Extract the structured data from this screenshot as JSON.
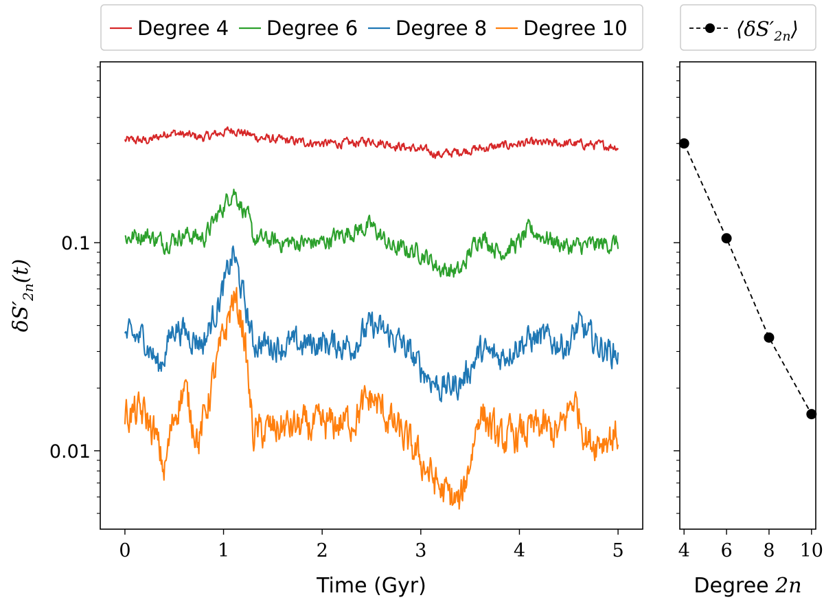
{
  "chart_data": [
    {
      "type": "line",
      "xlabel": "Time (Gyr)",
      "ylabel": "δS′2n(t)",
      "ylabel_parts": {
        "base": "δS′",
        "sub": "2n",
        "arg": "(t)"
      },
      "yscale": "log",
      "xlim": [
        -0.25,
        5.25
      ],
      "ylim": [
        0.0042,
        0.74
      ],
      "xticks": [
        0,
        1,
        2,
        3,
        4,
        5
      ],
      "xtick_labels": [
        "0",
        "1",
        "2",
        "3",
        "4",
        "5"
      ],
      "yticks": [
        0.01,
        0.1
      ],
      "ytick_labels": [
        "0.01",
        "0.1"
      ],
      "legend_position": "top, above plot",
      "grid": false,
      "series": [
        {
          "name": "Degree 4",
          "color": "#d62728",
          "x": [
            0,
            0.25,
            0.45,
            0.6,
            0.8,
            1.1,
            1.35,
            1.6,
            2.0,
            2.3,
            2.5,
            2.8,
            3.0,
            3.2,
            3.5,
            3.8,
            4.0,
            4.5,
            5.0
          ],
          "y": [
            0.31,
            0.31,
            0.34,
            0.33,
            0.32,
            0.35,
            0.32,
            0.31,
            0.3,
            0.3,
            0.31,
            0.29,
            0.28,
            0.265,
            0.28,
            0.29,
            0.3,
            0.3,
            0.29
          ]
        },
        {
          "name": "Degree 6",
          "color": "#2ca02c",
          "x": [
            0,
            0.2,
            0.4,
            0.6,
            0.8,
            1.0,
            1.1,
            1.25,
            1.3,
            1.6,
            2.0,
            2.2,
            2.5,
            2.7,
            3.0,
            3.2,
            3.4,
            3.5,
            3.6,
            3.8,
            4.0,
            4.1,
            4.5,
            5.0
          ],
          "y": [
            0.105,
            0.11,
            0.1,
            0.11,
            0.105,
            0.15,
            0.18,
            0.13,
            0.105,
            0.1,
            0.1,
            0.11,
            0.12,
            0.095,
            0.09,
            0.075,
            0.072,
            0.09,
            0.11,
            0.09,
            0.1,
            0.115,
            0.095,
            0.1
          ]
        },
        {
          "name": "Degree 8",
          "color": "#1f77b4",
          "x": [
            0,
            0.2,
            0.35,
            0.5,
            0.7,
            0.8,
            1.0,
            1.1,
            1.2,
            1.3,
            1.6,
            2.0,
            2.3,
            2.5,
            2.8,
            3.0,
            3.2,
            3.4,
            3.6,
            3.8,
            4.0,
            4.2,
            4.5,
            4.6,
            4.8,
            5.0
          ],
          "y": [
            0.035,
            0.035,
            0.025,
            0.04,
            0.035,
            0.033,
            0.06,
            0.09,
            0.055,
            0.033,
            0.032,
            0.033,
            0.032,
            0.04,
            0.033,
            0.025,
            0.02,
            0.021,
            0.03,
            0.028,
            0.033,
            0.035,
            0.032,
            0.04,
            0.032,
            0.029
          ]
        },
        {
          "name": "Degree 10",
          "color": "#ff7f0e",
          "x": [
            0,
            0.2,
            0.3,
            0.4,
            0.5,
            0.6,
            0.75,
            0.85,
            1.0,
            1.1,
            1.2,
            1.3,
            1.6,
            2.0,
            2.3,
            2.5,
            2.8,
            3.0,
            3.2,
            3.4,
            3.5,
            3.6,
            3.8,
            4.0,
            4.2,
            4.4,
            4.55,
            4.7,
            5.0
          ],
          "y": [
            0.015,
            0.015,
            0.012,
            0.008,
            0.015,
            0.02,
            0.011,
            0.018,
            0.035,
            0.055,
            0.04,
            0.012,
            0.013,
            0.013,
            0.014,
            0.018,
            0.012,
            0.009,
            0.0065,
            0.0055,
            0.009,
            0.016,
            0.011,
            0.012,
            0.013,
            0.012,
            0.018,
            0.011,
            0.012
          ]
        }
      ]
    },
    {
      "type": "scatter",
      "xlabel": "Degree 2n",
      "xlabel_parts": {
        "base": "Degree ",
        "var": "2n"
      },
      "yscale": "log",
      "xlim": [
        3.8,
        10.2
      ],
      "ylim": [
        0.0042,
        0.74
      ],
      "xticks": [
        4,
        6,
        8,
        10
      ],
      "xtick_labels": [
        "4",
        "6",
        "8",
        "10"
      ],
      "legend_position": "top, above plot",
      "grid": false,
      "series": [
        {
          "name": "⟨δS′2n⟩",
          "name_parts": {
            "base": "δS′",
            "sub": "2n"
          },
          "color": "#000000",
          "linestyle": "dashed",
          "marker": "circle",
          "x": [
            4,
            6,
            8,
            10
          ],
          "y": [
            0.3,
            0.105,
            0.035,
            0.015
          ]
        }
      ]
    }
  ]
}
